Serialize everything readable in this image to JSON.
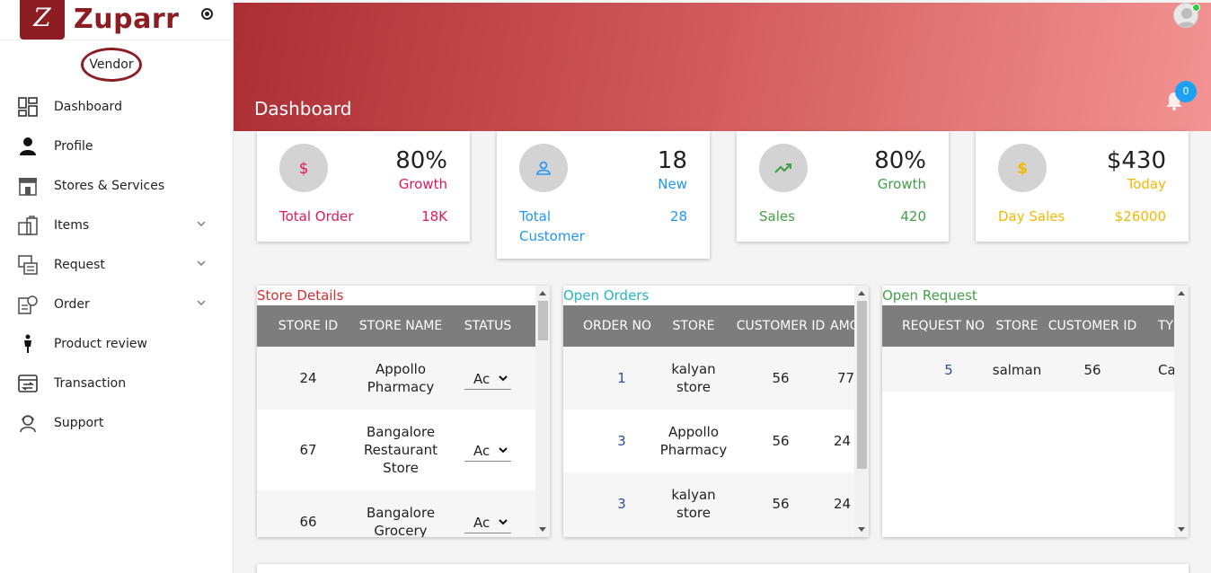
{
  "brand": {
    "name": "Zuparr",
    "mark": "Z"
  },
  "sidebar": {
    "role": "Vendor",
    "items": [
      {
        "label": "Dashboard",
        "icon": "dashboard-icon"
      },
      {
        "label": "Profile",
        "icon": "user-icon"
      },
      {
        "label": "Stores & Services",
        "icon": "store-icon"
      },
      {
        "label": "Items",
        "icon": "items-icon",
        "expandable": true
      },
      {
        "label": "Request",
        "icon": "request-icon",
        "expandable": true
      },
      {
        "label": "Order",
        "icon": "order-icon",
        "expandable": true
      },
      {
        "label": "Product review",
        "icon": "review-icon"
      },
      {
        "label": "Transaction",
        "icon": "transaction-icon"
      },
      {
        "label": "Support",
        "icon": "support-icon"
      }
    ]
  },
  "header": {
    "title": "Dashboard",
    "notifications": "0"
  },
  "stats": [
    {
      "icon": "dollar-icon",
      "value": "80%",
      "sub": "Growth",
      "label": "Total Order",
      "total": "18K",
      "color": "#e0195a"
    },
    {
      "icon": "user-icon",
      "value": "18",
      "sub": "New",
      "label": "Total Customer",
      "total": "28",
      "color": "#2196f3"
    },
    {
      "icon": "trend-up-icon",
      "value": "80%",
      "sub": "Growth",
      "label": "Sales",
      "total": "420",
      "color": "#43a047"
    },
    {
      "icon": "dollar-icon",
      "value": "$430",
      "sub": "Today",
      "label": "Day Sales",
      "total": "$26000",
      "color": "#f5b800"
    }
  ],
  "store_details": {
    "title": "Store Details",
    "title_color": "#d32f2f",
    "columns": [
      "STORE ID",
      "STORE NAME",
      "STATUS"
    ],
    "rows": [
      {
        "id": "24",
        "name": "Appollo Pharmacy",
        "status": "Ac"
      },
      {
        "id": "67",
        "name": "Bangalore Restaurant Store",
        "status": "Ac"
      },
      {
        "id": "66",
        "name": "Bangalore Grocery Store",
        "status": "Ac"
      }
    ]
  },
  "open_orders": {
    "title": "Open Orders",
    "title_color": "#26b4c6",
    "columns": [
      "ORDER NO",
      "STORE",
      "CUSTOMER ID",
      "AMO"
    ],
    "rows": [
      {
        "order_no": "1",
        "store": "kalyan store",
        "customer_id": "56",
        "amount": "77"
      },
      {
        "order_no": "3",
        "store": "Appollo Pharmacy",
        "customer_id": "56",
        "amount": "24"
      },
      {
        "order_no": "3",
        "store": "kalyan store",
        "customer_id": "56",
        "amount": "24"
      }
    ]
  },
  "open_request": {
    "title": "Open Request",
    "title_color": "#43a047",
    "columns": [
      "REQUEST NO",
      "STORE",
      "CUSTOMER ID",
      "TY"
    ],
    "rows": [
      {
        "request_no": "5",
        "store": "salman",
        "customer_id": "56",
        "type": "Cate"
      }
    ]
  }
}
